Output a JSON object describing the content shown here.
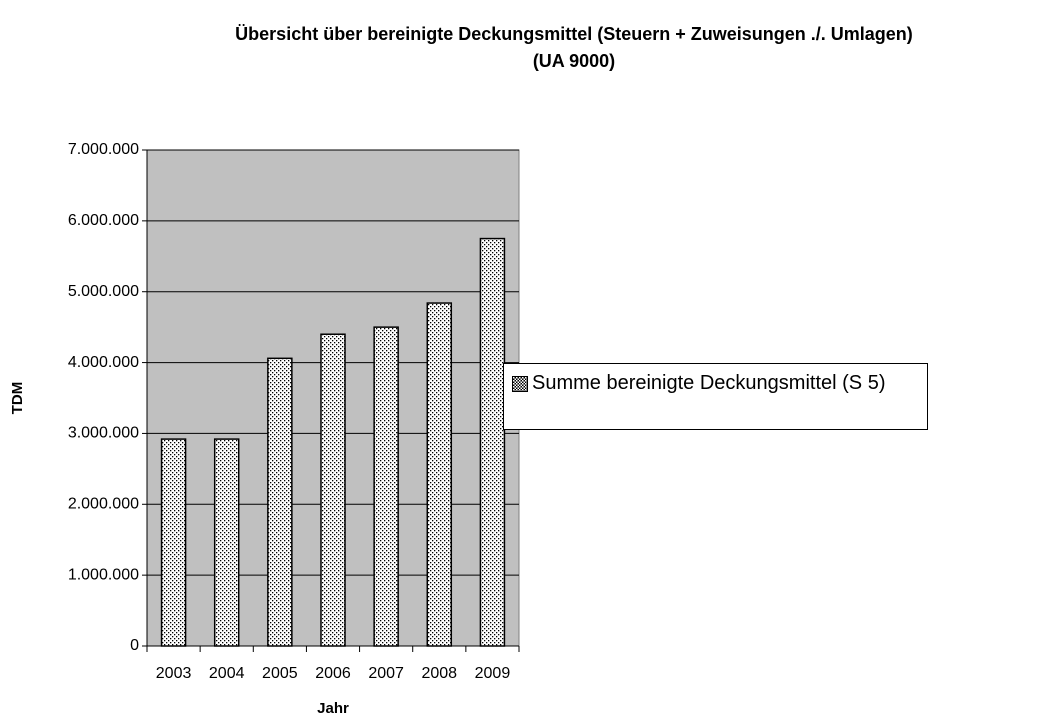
{
  "chart_data": {
    "type": "bar",
    "title": [
      "Übersicht über bereinigte Deckungsmittel (Steuern + Zuweisungen ./. Umlagen)",
      "(UA 9000)"
    ],
    "x_label": "Jahr",
    "y_label": "TDM",
    "categories": [
      "2003",
      "2004",
      "2005",
      "2006",
      "2007",
      "2008",
      "2009"
    ],
    "series": [
      {
        "name": "Summe bereinigte Deckungsmittel (S 5)",
        "color": "#000000",
        "values": [
          2920000,
          2920000,
          4060000,
          4400000,
          4500000,
          4840000,
          5750000
        ]
      }
    ],
    "ylim": [
      0,
      7000000
    ],
    "yticks": [
      0,
      {
        "value": 1000000,
        "label": "1.000.000"
      },
      {
        "value": 2000000,
        "label": "2.000.000"
      },
      {
        "value": 3000000,
        "label": "3.000.000"
      },
      {
        "value": 4000000,
        "label": "4.000.000"
      },
      {
        "value": 5000000,
        "label": "5.000.000"
      },
      {
        "value": 6000000,
        "label": "6.000.000"
      },
      {
        "value": 7000000,
        "label": "7.000.000"
      }
    ],
    "grid": true,
    "plot_background": "#c0c0c0",
    "legend": "right"
  }
}
